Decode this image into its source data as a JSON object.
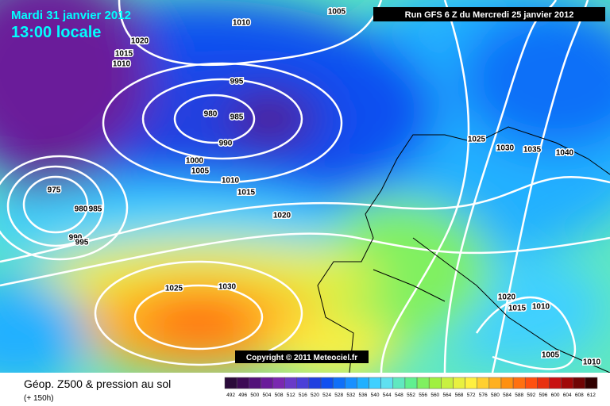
{
  "header": {
    "date": "Mardi 31 janvier 2012",
    "time": "13:00 locale",
    "run": "Run GFS 6 Z du Mercredi 25 janvier 2012"
  },
  "isobars": [
    "1005",
    "1010",
    "1020",
    "1015",
    "1010",
    "995",
    "980",
    "985",
    "990",
    "1000",
    "1005",
    "1010",
    "1015",
    "1020",
    "975",
    "980",
    "985",
    "990",
    "995",
    "1025",
    "1030",
    "1025",
    "1030",
    "1035",
    "1040",
    "1020",
    "1015",
    "1010",
    "1005",
    "1010"
  ],
  "copyright": "Copyright © 2011 Meteociel.fr",
  "legend": {
    "title": "Géop. Z500 & pression au sol",
    "lead": "(+ 150h)",
    "labels": [
      492,
      496,
      500,
      504,
      508,
      512,
      516,
      520,
      524,
      528,
      532,
      536,
      540,
      544,
      548,
      552,
      556,
      560,
      564,
      568,
      572,
      576,
      580,
      584,
      588,
      592,
      596,
      600,
      604,
      608,
      612
    ],
    "colors": [
      "#2a0a3a",
      "#3d0a55",
      "#52107a",
      "#6a1a9a",
      "#7a28b0",
      "#6a3ac8",
      "#4a40d8",
      "#2040e0",
      "#1050f0",
      "#1070f8",
      "#1890ff",
      "#20b0ff",
      "#40d0ff",
      "#60e0f0",
      "#60e8c0",
      "#60f090",
      "#80f060",
      "#a0f040",
      "#c8f040",
      "#e8f040",
      "#fff040",
      "#ffd030",
      "#ffb020",
      "#ff9010",
      "#ff7010",
      "#ff5010",
      "#e83010",
      "#c81010",
      "#a00808",
      "#700505",
      "#300000"
    ]
  }
}
